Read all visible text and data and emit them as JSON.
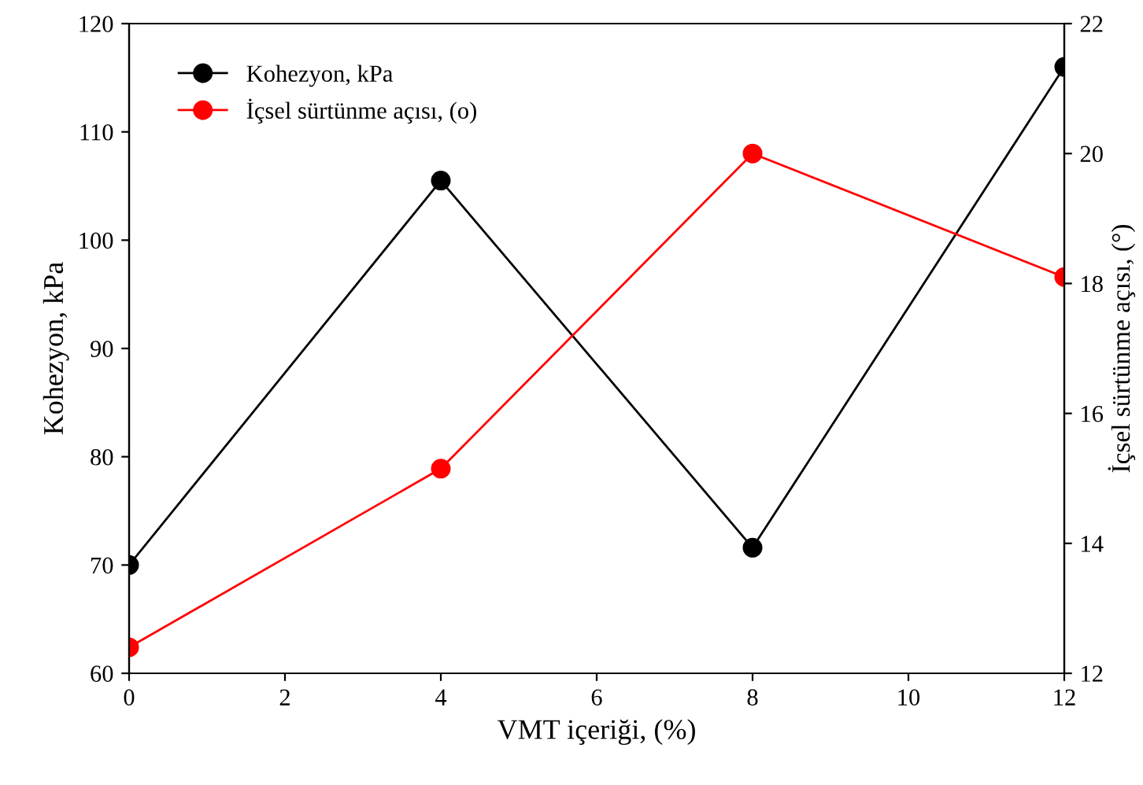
{
  "chart_data": {
    "type": "line",
    "xlabel": "VMT içeriği, (%)",
    "ylabel": "Kohezyon, kPa",
    "y2label": "İçsel sürtünme açısı, (°)",
    "x": [
      0,
      4,
      8,
      12
    ],
    "series": [
      {
        "name": "Kohezyon, kPa",
        "color": "#000000",
        "values": [
          70,
          105.5,
          71.6,
          116
        ]
      },
      {
        "name": "İçsel sürtünme açısı, (o)",
        "color": "#ff0000",
        "values": [
          12.4,
          15.15,
          20.0,
          18.1
        ],
        "axis": "y2"
      }
    ],
    "xlim": [
      0,
      12
    ],
    "xticks": [
      0,
      2,
      4,
      6,
      8,
      10,
      12
    ],
    "ylim": [
      60,
      120
    ],
    "yticks": [
      60,
      70,
      80,
      90,
      100,
      110,
      120
    ],
    "y2lim": [
      12,
      22
    ],
    "y2ticks": [
      12,
      14,
      16,
      18,
      20,
      22
    ],
    "marker": "circle",
    "line_style": "solid",
    "legend": "top left",
    "grid": false
  }
}
